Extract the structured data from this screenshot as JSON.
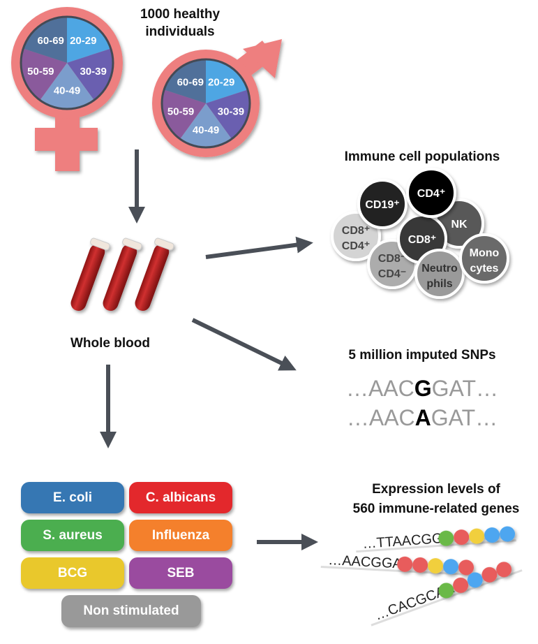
{
  "cohort": {
    "title_line1": "1000 healthy",
    "title_line2": "individuals",
    "age_groups": [
      "20-29",
      "30-39",
      "40-49",
      "50-59",
      "60-69"
    ],
    "age_colors": [
      "#4ea6e3",
      "#6a5fb0",
      "#7b9dcc",
      "#8a5a9c",
      "#50709a"
    ],
    "symbol_color": "#ee7f7f"
  },
  "blood": {
    "label": "Whole blood"
  },
  "cells": {
    "title": "Immune cell populations",
    "items": [
      {
        "line1": "CD8⁺",
        "line2": "CD4⁺",
        "color": "#d4d4d4",
        "text": "#444"
      },
      {
        "line1": "CD8⁻",
        "line2": "CD4⁻",
        "color": "#acacac",
        "text": "#444"
      },
      {
        "line1": "CD19⁺",
        "line2": "",
        "color": "#222222",
        "text": "#fff"
      },
      {
        "line1": "NK",
        "line2": "",
        "color": "#585858",
        "text": "#fff"
      },
      {
        "line1": "CD8⁺",
        "line2": "",
        "color": "#383838",
        "text": "#fff"
      },
      {
        "line1": "CD4⁺",
        "line2": "",
        "color": "#000000",
        "text": "#fff"
      },
      {
        "line1": "Neutro",
        "line2": "phils",
        "color": "#9a9a9a",
        "text": "#333"
      },
      {
        "line1": "Mono",
        "line2": "cytes",
        "color": "#6a6a6a",
        "text": "#fff"
      }
    ]
  },
  "snps": {
    "title": "5 million imputed SNPs",
    "seq1": {
      "pre": "…AAC",
      "allele": "G",
      "post": "GAT…"
    },
    "seq2": {
      "pre": "…AAC",
      "allele": "A",
      "post": "GAT…"
    }
  },
  "stimuli": [
    {
      "label": "E. coli",
      "color": "#3677b3"
    },
    {
      "label": "C. albicans",
      "color": "#e3282c"
    },
    {
      "label": "S. aureus",
      "color": "#4bae4f"
    },
    {
      "label": "Influenza",
      "color": "#f4802c"
    },
    {
      "label": "BCG",
      "color": "#e9c82c"
    },
    {
      "label": "SEB",
      "color": "#9a4b9f"
    },
    {
      "label": "Non stimulated",
      "color": "#999999"
    }
  ],
  "expression": {
    "title_line1": "Expression levels of",
    "title_line2": "560 immune-related genes",
    "strands": [
      {
        "seq": "…TTAACGG",
        "beads": [
          "#6ab946",
          "#e85c5c",
          "#f1cf3c",
          "#4ea6f0",
          "#4ea6f0"
        ]
      },
      {
        "seq": "…AACGGAT",
        "beads": [
          "#e85c5c",
          "#e85c5c",
          "#f1cf3c",
          "#4ea6f0",
          "#e85c5c"
        ]
      },
      {
        "seq": "…CACGCAA",
        "beads": [
          "#6ab946",
          "#e85c5c",
          "#4ea6f0",
          "#e85c5c",
          "#e85c5c"
        ]
      }
    ]
  }
}
